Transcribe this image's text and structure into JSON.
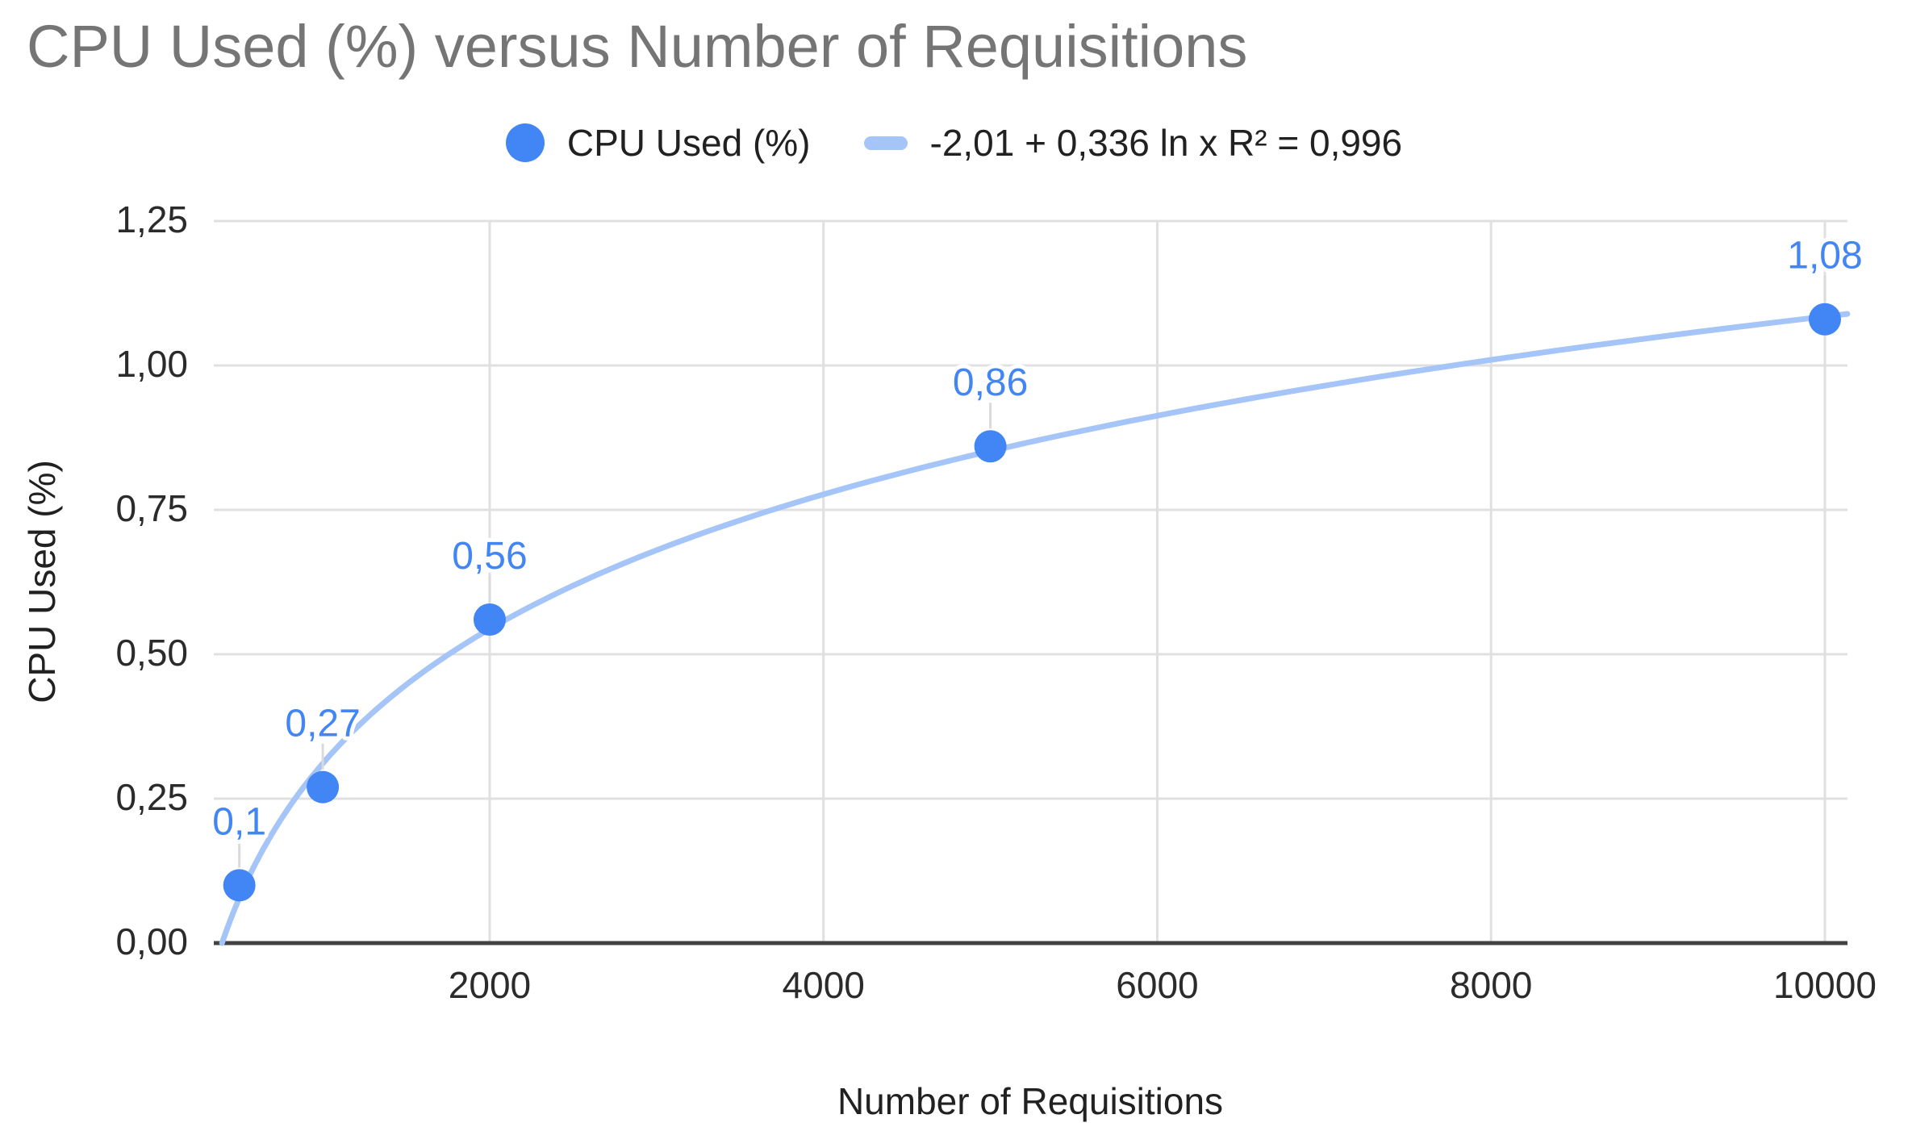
{
  "chart": {
    "title": "CPU Used (%) versus Number of Requisitions",
    "legend": {
      "series_label": "CPU Used (%)",
      "trendline_label": "-2,01 + 0,336 ln x R² = 0,996"
    }
  },
  "chart_data": {
    "type": "scatter",
    "title": "CPU Used (%) versus Number of Requisitions",
    "xlabel": "Number of Requisitions",
    "ylabel": "CPU Used (%)",
    "series": [
      {
        "name": "CPU Used (%)",
        "x": [
          500,
          1000,
          2000,
          5000,
          10000
        ],
        "y": [
          0.1,
          0.27,
          0.56,
          0.86,
          1.08
        ],
        "point_labels": [
          "0,1",
          "0,27",
          "0,56",
          "0,86",
          "1,08"
        ]
      }
    ],
    "trendline": {
      "label": "-2,01 + 0,336 ln x R² = 0,996",
      "form": "y = a + b*ln(x)",
      "a": -2.01,
      "b": 0.336,
      "r2": 0.996
    },
    "x_ticks": [
      {
        "v": 2000,
        "label": "2000"
      },
      {
        "v": 4000,
        "label": "4000"
      },
      {
        "v": 6000,
        "label": "6000"
      },
      {
        "v": 8000,
        "label": "8000"
      },
      {
        "v": 10000,
        "label": "10000"
      }
    ],
    "y_ticks": [
      {
        "v": 0.0,
        "label": "0,00"
      },
      {
        "v": 0.25,
        "label": "0,25"
      },
      {
        "v": 0.5,
        "label": "0,50"
      },
      {
        "v": 0.75,
        "label": "0,75"
      },
      {
        "v": 1.0,
        "label": "1,00"
      },
      {
        "v": 1.25,
        "label": "1,25"
      }
    ],
    "xlim": [
      347,
      10135
    ],
    "ylim": [
      0,
      1.25
    ],
    "grid": true,
    "legend_position": "top",
    "colors": {
      "series": "#4285F4",
      "trendline": "#A5C4F7",
      "point_label": "#4285F4",
      "gridline": "#e0e0e0",
      "axis_line": "#424242",
      "leader_line": "#dadada",
      "tick_label": "#2b2b2b",
      "title": "#757575"
    }
  }
}
